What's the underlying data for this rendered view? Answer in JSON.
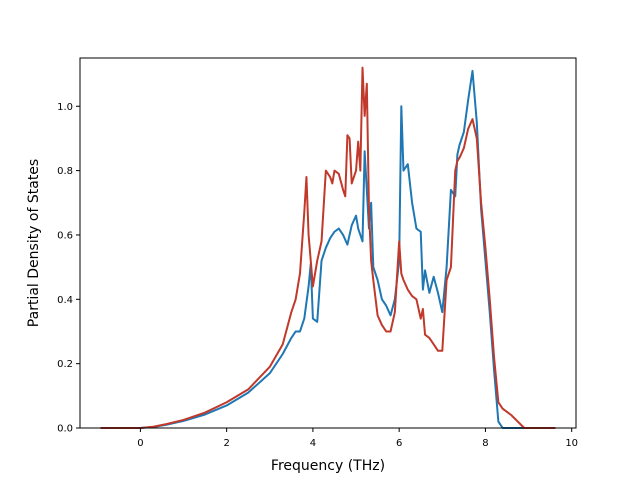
{
  "chart_data": {
    "type": "line",
    "title": "",
    "xlabel": "Frequency (THz)",
    "ylabel": "Partial Density of States",
    "xlim": [
      -1.4,
      10.1
    ],
    "ylim": [
      0.0,
      1.15
    ],
    "grid": false,
    "xticks": [
      0,
      2,
      4,
      6,
      8,
      10
    ],
    "yticks": [
      0.0,
      0.2,
      0.4,
      0.6,
      0.8,
      1.0
    ],
    "xtick_labels": [
      "0",
      "2",
      "4",
      "6",
      "8",
      "10"
    ],
    "ytick_labels": [
      "0.0",
      "0.2",
      "0.4",
      "0.6",
      "0.8",
      "1.0"
    ],
    "series": [
      {
        "color": "#1f77b4",
        "x": [
          -0.9,
          0.0,
          0.3,
          0.6,
          1.0,
          1.5,
          2.0,
          2.5,
          3.0,
          3.3,
          3.5,
          3.6,
          3.7,
          3.8,
          3.9,
          3.95,
          4.0,
          4.1,
          4.2,
          4.3,
          4.4,
          4.5,
          4.6,
          4.7,
          4.8,
          4.9,
          5.0,
          5.05,
          5.1,
          5.15,
          5.2,
          5.3,
          5.35,
          5.4,
          5.5,
          5.6,
          5.7,
          5.8,
          5.9,
          6.0,
          6.05,
          6.1,
          6.2,
          6.3,
          6.4,
          6.5,
          6.55,
          6.6,
          6.7,
          6.8,
          6.9,
          7.0,
          7.1,
          7.2,
          7.3,
          7.35,
          7.4,
          7.5,
          7.6,
          7.7,
          7.8,
          7.9,
          8.0,
          8.1,
          8.2,
          8.3,
          8.35,
          8.4,
          8.6,
          8.8,
          9.6
        ],
        "y": [
          0.0,
          0.0,
          0.003,
          0.01,
          0.022,
          0.042,
          0.07,
          0.11,
          0.17,
          0.23,
          0.28,
          0.3,
          0.3,
          0.34,
          0.44,
          0.51,
          0.34,
          0.33,
          0.52,
          0.56,
          0.59,
          0.61,
          0.62,
          0.6,
          0.57,
          0.63,
          0.66,
          0.62,
          0.6,
          0.58,
          0.86,
          0.62,
          0.7,
          0.5,
          0.46,
          0.4,
          0.38,
          0.35,
          0.4,
          0.52,
          1.0,
          0.8,
          0.82,
          0.7,
          0.62,
          0.61,
          0.43,
          0.49,
          0.42,
          0.47,
          0.42,
          0.36,
          0.5,
          0.74,
          0.72,
          0.85,
          0.88,
          0.92,
          1.02,
          1.11,
          0.95,
          0.68,
          0.52,
          0.36,
          0.18,
          0.02,
          0.01,
          0.0,
          0.0,
          0.0,
          0.0
        ]
      },
      {
        "color": "#c0392b",
        "x": [
          -0.9,
          0.0,
          0.3,
          0.6,
          1.0,
          1.5,
          2.0,
          2.5,
          3.0,
          3.3,
          3.5,
          3.6,
          3.7,
          3.8,
          3.85,
          3.9,
          4.0,
          4.1,
          4.2,
          4.3,
          4.4,
          4.45,
          4.5,
          4.6,
          4.7,
          4.75,
          4.8,
          4.85,
          4.9,
          5.0,
          5.05,
          5.1,
          5.15,
          5.2,
          5.25,
          5.3,
          5.35,
          5.4,
          5.5,
          5.6,
          5.7,
          5.8,
          5.9,
          6.0,
          6.05,
          6.1,
          6.2,
          6.3,
          6.4,
          6.5,
          6.55,
          6.6,
          6.7,
          6.8,
          6.9,
          7.0,
          7.1,
          7.2,
          7.3,
          7.35,
          7.4,
          7.5,
          7.6,
          7.7,
          7.8,
          7.9,
          8.0,
          8.1,
          8.2,
          8.3,
          8.4,
          8.6,
          8.75,
          8.9,
          9.6
        ],
        "y": [
          0.0,
          0.0,
          0.004,
          0.012,
          0.025,
          0.048,
          0.08,
          0.12,
          0.19,
          0.26,
          0.36,
          0.4,
          0.48,
          0.67,
          0.78,
          0.6,
          0.44,
          0.52,
          0.58,
          0.8,
          0.78,
          0.76,
          0.8,
          0.79,
          0.74,
          0.72,
          0.91,
          0.9,
          0.76,
          0.8,
          0.89,
          0.8,
          1.12,
          0.97,
          1.07,
          0.68,
          0.52,
          0.46,
          0.35,
          0.32,
          0.3,
          0.3,
          0.36,
          0.58,
          0.48,
          0.46,
          0.43,
          0.41,
          0.4,
          0.34,
          0.37,
          0.29,
          0.28,
          0.26,
          0.24,
          0.24,
          0.46,
          0.5,
          0.8,
          0.83,
          0.84,
          0.87,
          0.93,
          0.96,
          0.9,
          0.7,
          0.56,
          0.4,
          0.22,
          0.08,
          0.06,
          0.04,
          0.02,
          0.0,
          0.0
        ]
      }
    ]
  }
}
